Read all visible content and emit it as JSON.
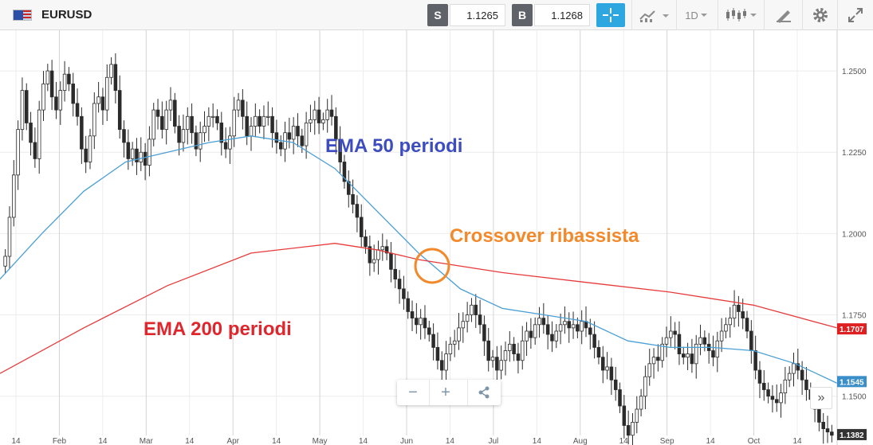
{
  "header": {
    "symbol": "EURUSD",
    "sell_label": "S",
    "sell_price": "1.1265",
    "buy_label": "B",
    "buy_price": "1.1268",
    "timeframe": "1D",
    "icons": [
      "eu-us-flag-icon",
      "crosshair-icon",
      "indicators-icon",
      "candlestick-icon",
      "drawing-icon",
      "gear-icon",
      "fullscreen-icon"
    ]
  },
  "chart_data": {
    "type": "candlestick",
    "symbol": "EURUSD",
    "interval": "1D",
    "x_tick_labels": [
      "14",
      "Feb",
      "14",
      "Mar",
      "14",
      "Apr",
      "14",
      "May",
      "14",
      "Jun",
      "14",
      "Jul",
      "14",
      "Aug",
      "14",
      "Sep",
      "14",
      "Oct",
      "14"
    ],
    "y_tick_labels": [
      "1.2500",
      "1.2250",
      "1.2000",
      "1.1750",
      "1.1500"
    ],
    "ylim": [
      1.135,
      1.2625
    ],
    "candles": [
      1.193,
      1.205,
      1.218,
      1.232,
      1.244,
      1.234,
      1.228,
      1.223,
      1.238,
      1.246,
      1.25,
      1.242,
      1.238,
      1.244,
      1.249,
      1.246,
      1.24,
      1.236,
      1.226,
      1.222,
      1.23,
      1.24,
      1.242,
      1.238,
      1.248,
      1.252,
      1.244,
      1.232,
      1.228,
      1.223,
      1.226,
      1.222,
      1.225,
      1.221,
      1.229,
      1.238,
      1.236,
      1.232,
      1.238,
      1.241,
      1.233,
      1.228,
      1.232,
      1.236,
      1.231,
      1.226,
      1.231,
      1.233,
      1.236,
      1.236,
      1.234,
      1.228,
      1.226,
      1.23,
      1.238,
      1.241,
      1.236,
      1.23,
      1.233,
      1.236,
      1.233,
      1.236,
      1.236,
      1.231,
      1.228,
      1.226,
      1.231,
      1.229,
      1.233,
      1.23,
      1.227,
      1.234,
      1.235,
      1.238,
      1.234,
      1.235,
      1.238,
      1.236,
      1.229,
      1.222,
      1.216,
      1.212,
      1.209,
      1.205,
      1.199,
      1.196,
      1.191,
      1.192,
      1.195,
      1.196,
      1.194,
      1.189,
      1.186,
      1.183,
      1.18,
      1.176,
      1.174,
      1.172,
      1.174,
      1.171,
      1.169,
      1.165,
      1.161,
      1.158,
      1.163,
      1.166,
      1.167,
      1.171,
      1.173,
      1.175,
      1.178,
      1.175,
      1.172,
      1.167,
      1.161,
      1.162,
      1.158,
      1.161,
      1.164,
      1.166,
      1.163,
      1.161,
      1.167,
      1.17,
      1.168,
      1.172,
      1.174,
      1.172,
      1.169,
      1.167,
      1.17,
      1.172,
      1.173,
      1.171,
      1.172,
      1.17,
      1.173,
      1.171,
      1.169,
      1.165,
      1.162,
      1.158,
      1.159,
      1.155,
      1.152,
      1.147,
      1.141,
      1.138,
      1.142,
      1.146,
      1.15,
      1.156,
      1.16,
      1.162,
      1.161,
      1.166,
      1.168,
      1.17,
      1.169,
      1.163,
      1.162,
      1.163,
      1.16,
      1.166,
      1.168,
      1.166,
      1.164,
      1.162,
      1.167,
      1.17,
      1.172,
      1.174,
      1.178,
      1.176,
      1.174,
      1.17,
      1.164,
      1.158,
      1.154,
      1.152,
      1.15,
      1.149,
      1.148,
      1.151,
      1.155,
      1.157,
      1.16,
      1.158,
      1.155,
      1.152,
      1.149,
      1.146,
      1.142,
      1.14,
      1.139,
      1.138
    ],
    "ema": [
      {
        "name": "EMA 50 periodi",
        "color": "#4a9fd5",
        "x_frac": [
          0,
          0.05,
          0.1,
          0.15,
          0.2,
          0.25,
          0.3,
          0.35,
          0.4,
          0.45,
          0.5,
          0.55,
          0.6,
          0.65,
          0.7,
          0.75,
          0.8,
          0.85,
          0.9,
          0.95,
          1.0
        ],
        "values": [
          1.186,
          1.2,
          1.213,
          1.222,
          1.225,
          1.228,
          1.23,
          1.228,
          1.22,
          1.207,
          1.194,
          1.183,
          1.177,
          1.175,
          1.173,
          1.167,
          1.165,
          1.165,
          1.164,
          1.16,
          1.154
        ]
      },
      {
        "name": "EMA 200 periodi",
        "color": "#e83a3a",
        "x_frac": [
          0,
          0.1,
          0.2,
          0.3,
          0.4,
          0.45,
          0.5,
          0.6,
          0.7,
          0.8,
          0.9,
          1.0
        ],
        "values": [
          1.157,
          1.171,
          1.184,
          1.194,
          1.197,
          1.195,
          1.192,
          1.188,
          1.185,
          1.182,
          1.178,
          1.171
        ]
      }
    ],
    "price_labels": [
      {
        "text": "1.1707",
        "value": 1.1707,
        "color": "#e02020"
      },
      {
        "text": "1.1545",
        "value": 1.1545,
        "color": "#3b8fc8"
      },
      {
        "text": "1.1382",
        "value": 1.1382,
        "color": "#333333"
      }
    ],
    "annotations": {
      "ema50": "EMA 50 periodi",
      "ema200": "EMA 200 periodi",
      "crossover": "Crossover ribassista"
    },
    "grid": true
  },
  "zoom": {
    "minus": "−",
    "plus": "+"
  }
}
